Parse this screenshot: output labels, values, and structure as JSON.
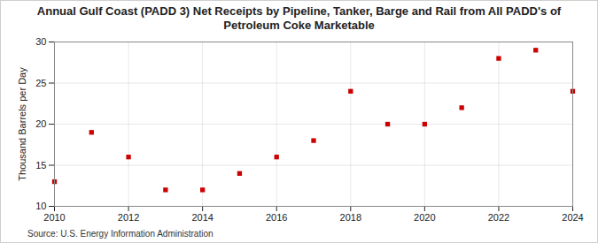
{
  "chart_data": {
    "type": "scatter",
    "title": "Annual Gulf Coast (PADD 3) Net Receipts by Pipeline, Tanker, Barge and Rail from All PADD's of Petroleum Coke Marketable",
    "y_label": "Thousand Barrels per Day",
    "caption": "Source: U.S. Energy Information Administration",
    "x": [
      2010,
      2011,
      2012,
      2013,
      2014,
      2015,
      2016,
      2017,
      2018,
      2019,
      2020,
      2021,
      2022,
      2023,
      2024
    ],
    "values": [
      13,
      19,
      16,
      12,
      12,
      14,
      16,
      18,
      24,
      20,
      20,
      22,
      28,
      29,
      24
    ],
    "color": "#cc0000",
    "marker": "square",
    "xlim": [
      2010,
      2024
    ],
    "xticks": [
      2010,
      2012,
      2014,
      2016,
      2018,
      2020,
      2022,
      2024
    ],
    "ylim": [
      10,
      30
    ],
    "yticks": [
      10,
      15,
      20,
      25,
      30
    ],
    "grid": true
  }
}
